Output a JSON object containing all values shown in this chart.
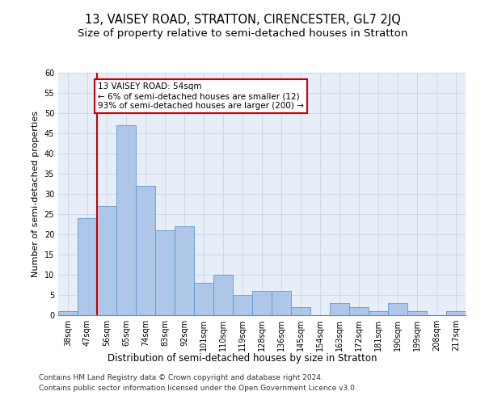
{
  "title": "13, VAISEY ROAD, STRATTON, CIRENCESTER, GL7 2JQ",
  "subtitle": "Size of property relative to semi-detached houses in Stratton",
  "xlabel": "Distribution of semi-detached houses by size in Stratton",
  "ylabel": "Number of semi-detached properties",
  "categories": [
    "38sqm",
    "47sqm",
    "56sqm",
    "65sqm",
    "74sqm",
    "83sqm",
    "92sqm",
    "101sqm",
    "110sqm",
    "119sqm",
    "128sqm",
    "136sqm",
    "145sqm",
    "154sqm",
    "163sqm",
    "172sqm",
    "181sqm",
    "190sqm",
    "199sqm",
    "208sqm",
    "217sqm"
  ],
  "values": [
    1,
    24,
    27,
    47,
    32,
    21,
    22,
    8,
    10,
    5,
    6,
    6,
    2,
    0,
    3,
    2,
    1,
    3,
    1,
    0,
    1
  ],
  "bar_color": "#aec6e8",
  "bar_edge_color": "#5b9bd5",
  "vline_x_index": 1.5,
  "vline_color": "#cc0000",
  "annotation_text": "13 VAISEY ROAD: 54sqm\n← 6% of semi-detached houses are smaller (12)\n93% of semi-detached houses are larger (200) →",
  "annotation_box_color": "white",
  "annotation_box_edgecolor": "#cc0000",
  "ylim": [
    0,
    60
  ],
  "yticks": [
    0,
    5,
    10,
    15,
    20,
    25,
    30,
    35,
    40,
    45,
    50,
    55,
    60
  ],
  "grid_color": "#c8d4e8",
  "bg_color": "#e8eef8",
  "footer1": "Contains HM Land Registry data © Crown copyright and database right 2024.",
  "footer2": "Contains public sector information licensed under the Open Government Licence v3.0.",
  "title_fontsize": 10.5,
  "subtitle_fontsize": 9.5,
  "xlabel_fontsize": 8.5,
  "ylabel_fontsize": 8,
  "tick_fontsize": 7,
  "annotation_fontsize": 7.5,
  "footer_fontsize": 6.5
}
